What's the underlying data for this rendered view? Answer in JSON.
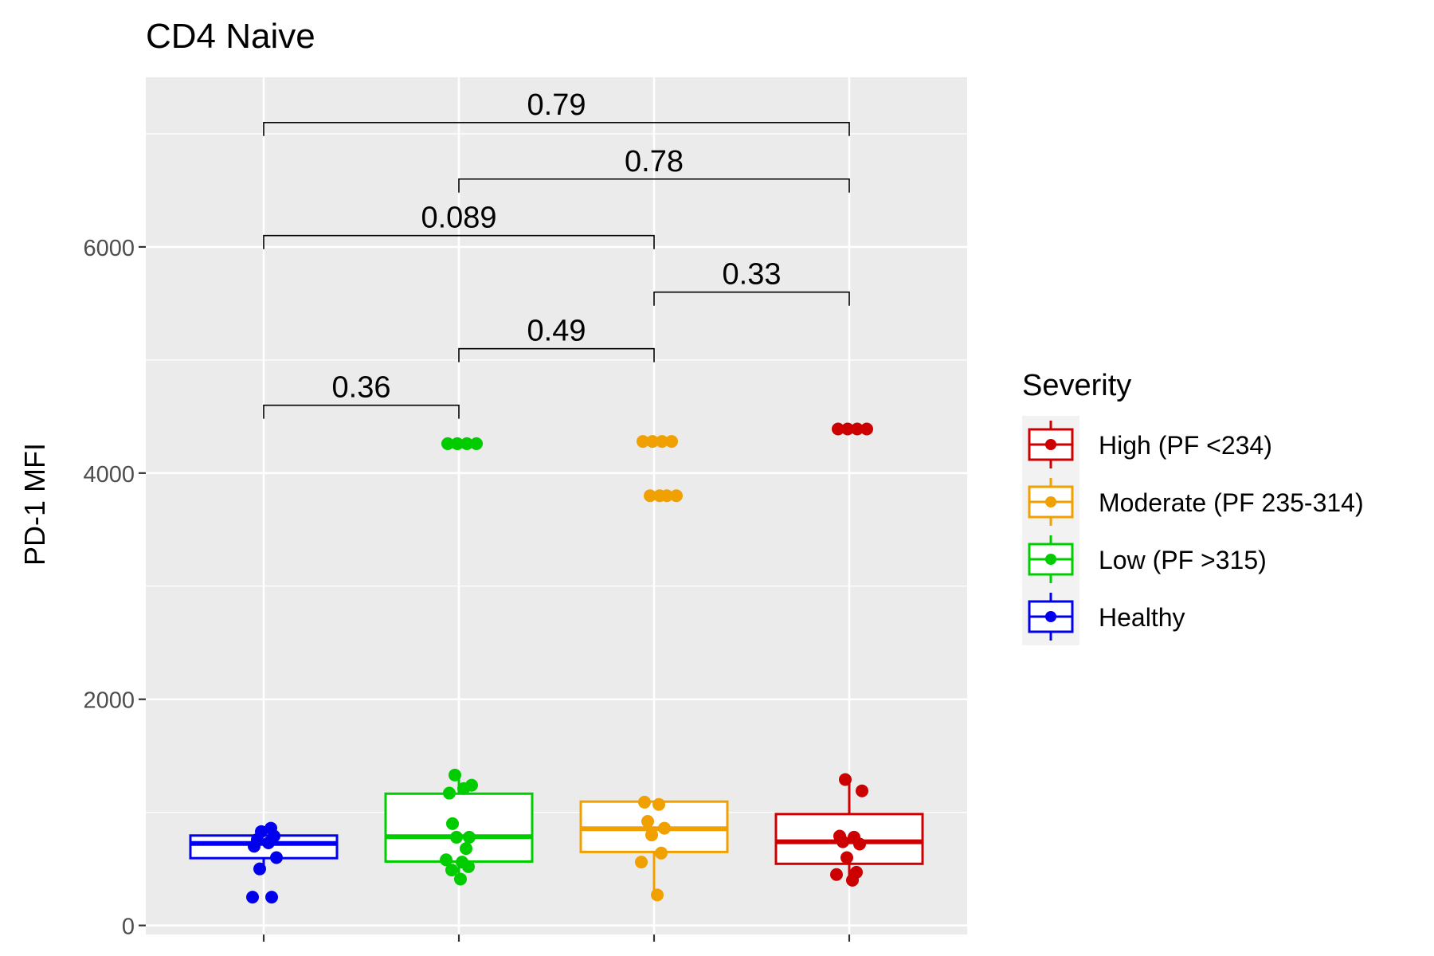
{
  "chart_data": {
    "type": "box",
    "title": "CD4 Naive",
    "xlabel": "",
    "ylabel": "PD-1 MFI",
    "ylim": [
      -80,
      7500
    ],
    "yticks": [
      0,
      2000,
      4000,
      6000
    ],
    "grid": true,
    "legend": {
      "title": "Severity",
      "position": "right",
      "entries": [
        "High (PF <234)",
        "Moderate (PF 235-314)",
        "Low (PF >315)",
        "Healthy"
      ],
      "colors": [
        "#CC0000",
        "#F0A000",
        "#00CC00",
        "#0000EE"
      ]
    },
    "categories": [
      "Healthy",
      "Low (PF >315)",
      "Moderate (PF 235-314)",
      "High (PF <234)"
    ],
    "series": [
      {
        "name": "Healthy",
        "color": "#0000EE",
        "box": {
          "q1": 595,
          "median": 725,
          "q3": 795,
          "whisker_low": 500,
          "whisker_high": 865
        },
        "points": [
          250,
          250,
          500,
          600,
          700,
          730,
          760,
          790,
          830,
          860
        ]
      },
      {
        "name": "Low (PF >315)",
        "color": "#00CC00",
        "box": {
          "q1": 565,
          "median": 785,
          "q3": 1165,
          "whisker_low": 405,
          "whisker_high": 1330
        },
        "points": [
          4260,
          4260,
          1330,
          1240,
          1170,
          1210,
          900,
          780,
          780,
          680,
          580,
          560,
          520,
          490,
          410
        ]
      },
      {
        "name": "Moderate (PF 235-314)",
        "color": "#F0A000",
        "box": {
          "q1": 650,
          "median": 855,
          "q3": 1095,
          "whisker_low": 270,
          "whisker_high": 1095
        },
        "points": [
          4280,
          4280,
          3800,
          3800,
          1090,
          1070,
          920,
          860,
          800,
          640,
          560,
          270
        ]
      },
      {
        "name": "High (PF <234)",
        "color": "#CC0000",
        "box": {
          "q1": 545,
          "median": 740,
          "q3": 985,
          "whisker_low": 400,
          "whisker_high": 1290
        },
        "points": [
          4390,
          4390,
          1290,
          1190,
          790,
          780,
          740,
          720,
          600,
          470,
          450,
          400
        ]
      }
    ],
    "comparisons": [
      {
        "from": 0,
        "to": 1,
        "label": "0.36",
        "y": 4600
      },
      {
        "from": 1,
        "to": 2,
        "label": "0.49",
        "y": 5100
      },
      {
        "from": 2,
        "to": 3,
        "label": "0.33",
        "y": 5600
      },
      {
        "from": 0,
        "to": 2,
        "label": "0.089",
        "y": 6100
      },
      {
        "from": 1,
        "to": 3,
        "label": "0.78",
        "y": 6600
      },
      {
        "from": 0,
        "to": 3,
        "label": "0.79",
        "y": 7100
      }
    ]
  }
}
